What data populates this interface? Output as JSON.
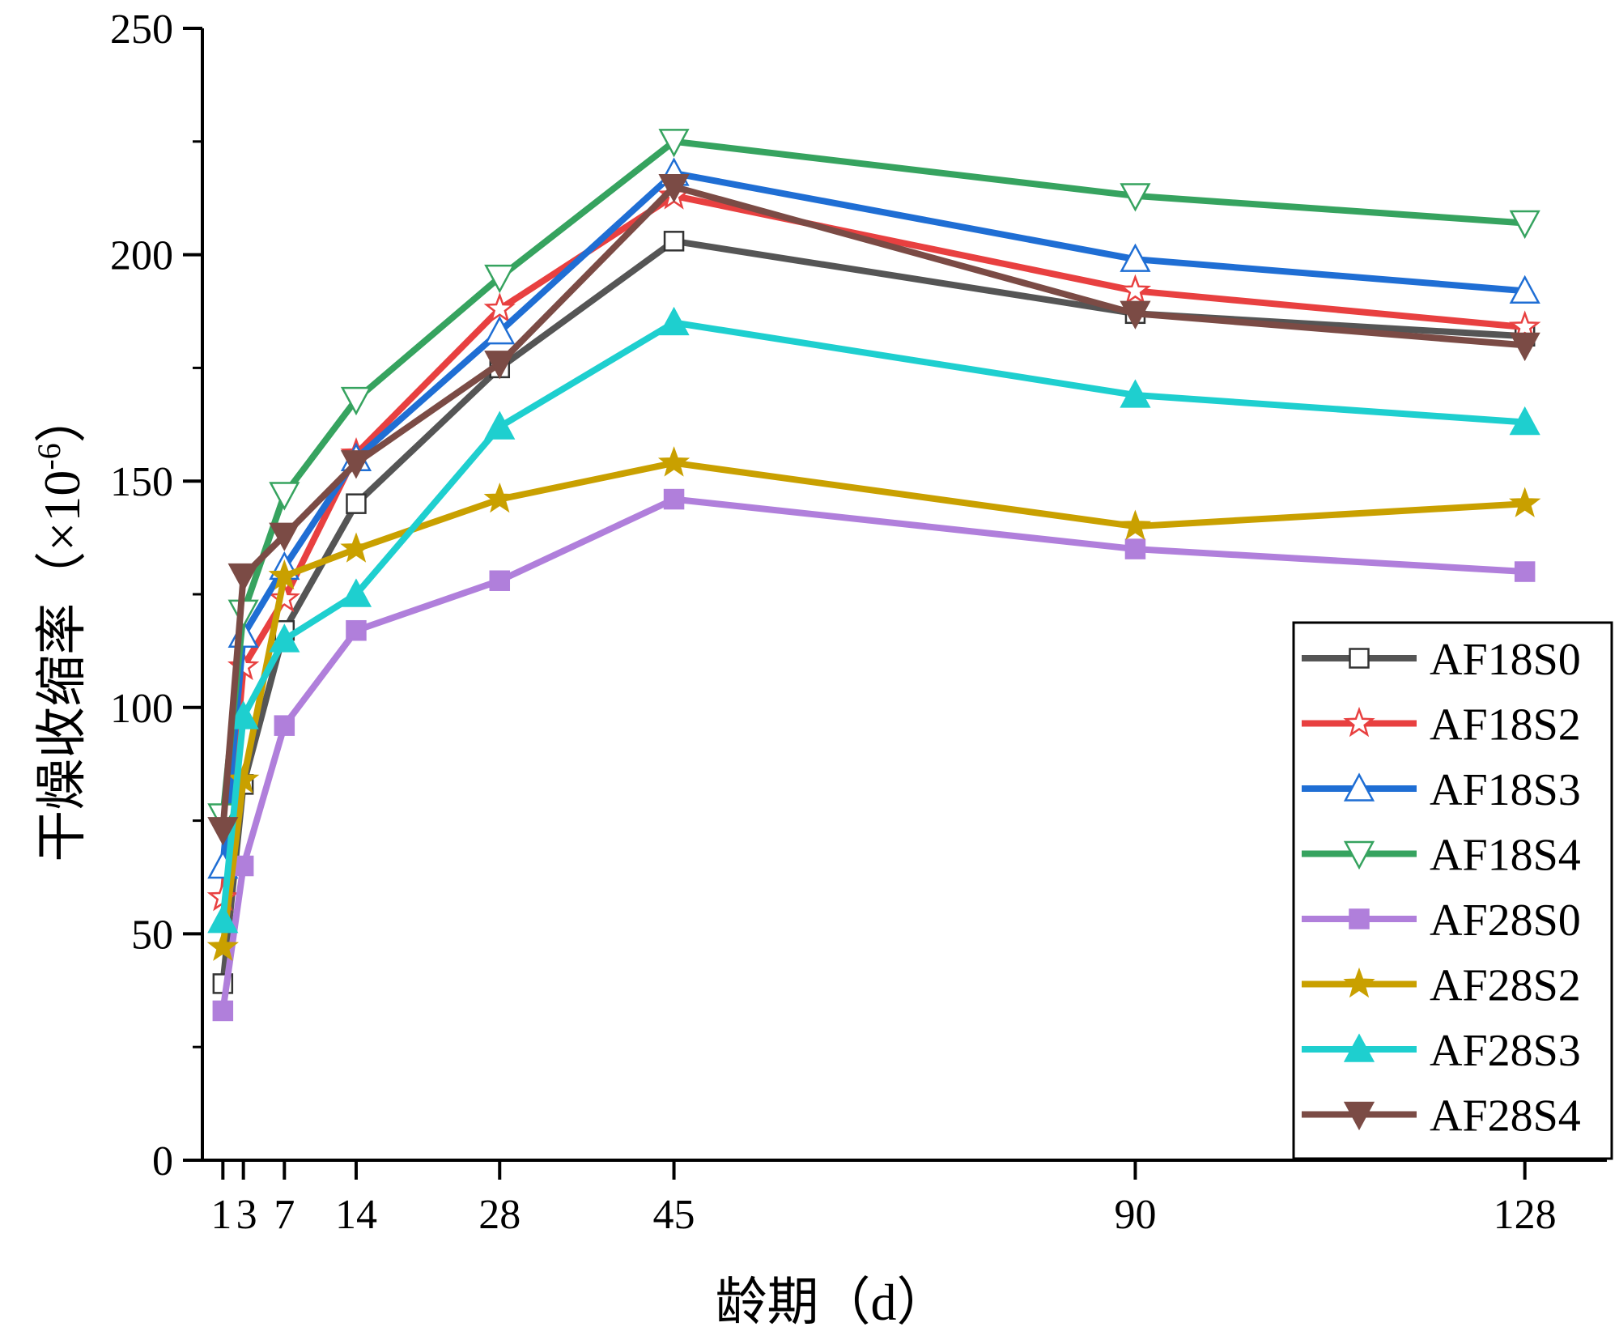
{
  "chart_data": {
    "type": "line",
    "title": "",
    "xlabel": "龄期（d）",
    "ylabel": "干燥收缩率（×10",
    "ylabel_sup": "-6",
    "ylabel_suffix": "）",
    "xlim": [
      -1,
      136
    ],
    "ylim": [
      0,
      250
    ],
    "x_ticks": [
      1,
      3,
      7,
      14,
      28,
      45,
      90,
      128
    ],
    "x_tick_labels": [
      "1",
      "3",
      "7",
      "14",
      "28",
      "45",
      "90",
      "128"
    ],
    "y_ticks": [
      0,
      50,
      100,
      150,
      200,
      250
    ],
    "y_tick_labels": [
      "0",
      "50",
      "100",
      "150",
      "200",
      "250"
    ],
    "x": [
      1,
      3,
      7,
      14,
      28,
      45,
      90,
      128
    ],
    "legend_position": "bottom-right",
    "series": [
      {
        "name": "AF18S0",
        "color": "#555555",
        "marker": "square-open",
        "values": [
          39,
          83,
          117,
          145,
          175,
          203,
          187,
          182
        ]
      },
      {
        "name": "AF18S2",
        "color": "#e84040",
        "marker": "star-open",
        "values": [
          58,
          109,
          124,
          156,
          188,
          213,
          192,
          184
        ]
      },
      {
        "name": "AF18S3",
        "color": "#1f6ed4",
        "marker": "triangle-up-open",
        "values": [
          65,
          116,
          131,
          155,
          183,
          218,
          199,
          192
        ]
      },
      {
        "name": "AF18S4",
        "color": "#36a35f",
        "marker": "triangle-down-open",
        "values": [
          76,
          121,
          147,
          168,
          195,
          225,
          213,
          207
        ]
      },
      {
        "name": "AF28S0",
        "color": "#b07fdb",
        "marker": "square-filled",
        "values": [
          33,
          65,
          96,
          117,
          128,
          146,
          135,
          130
        ]
      },
      {
        "name": "AF28S2",
        "color": "#c9a000",
        "marker": "star-filled",
        "values": [
          47,
          84,
          129,
          135,
          146,
          154,
          140,
          145
        ]
      },
      {
        "name": "AF28S3",
        "color": "#1ecfcf",
        "marker": "triangle-up-filled",
        "values": [
          53,
          98,
          115,
          125,
          162,
          185,
          169,
          163
        ]
      },
      {
        "name": "AF28S4",
        "color": "#7b4b45",
        "marker": "triangle-down-filled",
        "values": [
          73,
          129,
          138,
          154,
          176,
          215,
          187,
          180
        ]
      }
    ]
  }
}
